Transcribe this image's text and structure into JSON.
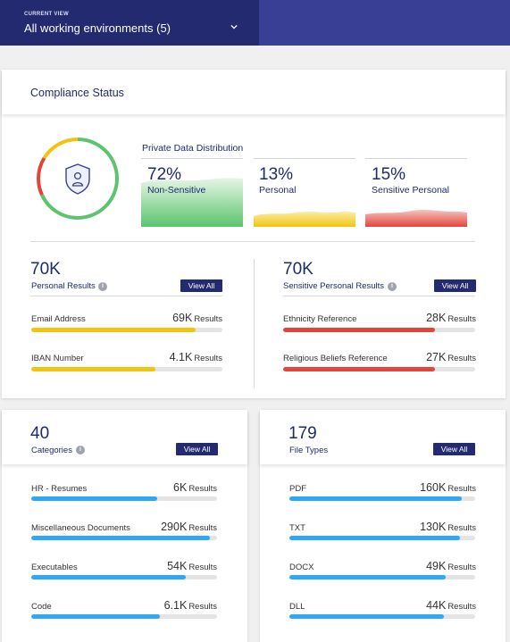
{
  "header": {
    "current_view_label": "CURRENT VIEW",
    "current_view_value": "All working environments (5)"
  },
  "compliance": {
    "title": "Compliance Status",
    "distribution_title": "Private Data Distribution",
    "distribution": [
      {
        "pct": "72%",
        "label": "Non-Sensitive",
        "color": "#5cc46e"
      },
      {
        "pct": "13%",
        "label": "Personal",
        "color": "#f2c40f"
      },
      {
        "pct": "15%",
        "label": "Sensitive Personal",
        "color": "#e3453b"
      }
    ],
    "personal": {
      "count": "70K",
      "label": "Personal Results",
      "view_all": "View All",
      "items": [
        {
          "name": "Email Address",
          "value": "69K",
          "unit": "Results",
          "fraction": 0.86
        },
        {
          "name": "IBAN Number",
          "value": "4.1K",
          "unit": "Results",
          "fraction": 0.65
        }
      ]
    },
    "sensitive": {
      "count": "70K",
      "label": "Sensitive Personal Results",
      "view_all": "View All",
      "items": [
        {
          "name": "Ethnicity Reference",
          "value": "28K",
          "unit": "Results",
          "fraction": 0.79
        },
        {
          "name": "Religious Beliefs Reference",
          "value": "27K",
          "unit": "Results",
          "fraction": 0.79
        }
      ]
    }
  },
  "categories": {
    "count": "40",
    "label": "Categories",
    "view_all": "View All",
    "items": [
      {
        "name": "HR - Resumes",
        "value": "6K",
        "unit": "Results",
        "fraction": 0.68
      },
      {
        "name": "Miscellaneous Documents",
        "value": "290K",
        "unit": "Results",
        "fraction": 0.96
      },
      {
        "name": "Executables",
        "value": "54K",
        "unit": "Results",
        "fraction": 0.83
      },
      {
        "name": "Code",
        "value": "6.1K",
        "unit": "Results",
        "fraction": 0.69
      }
    ]
  },
  "file_types": {
    "count": "179",
    "label": "File Types",
    "view_all": "View All",
    "items": [
      {
        "name": "PDF",
        "value": "160K",
        "unit": "Results",
        "fraction": 0.93
      },
      {
        "name": "TXT",
        "value": "130K",
        "unit": "Results",
        "fraction": 0.92
      },
      {
        "name": "DOCX",
        "value": "49K",
        "unit": "Results",
        "fraction": 0.84
      },
      {
        "name": "DLL",
        "value": "44K",
        "unit": "Results",
        "fraction": 0.83
      }
    ]
  },
  "colors": {
    "yellow": "#f2c40f",
    "red": "#e3453b",
    "blue": "#2ea8f5",
    "green": "#5cc46e"
  }
}
